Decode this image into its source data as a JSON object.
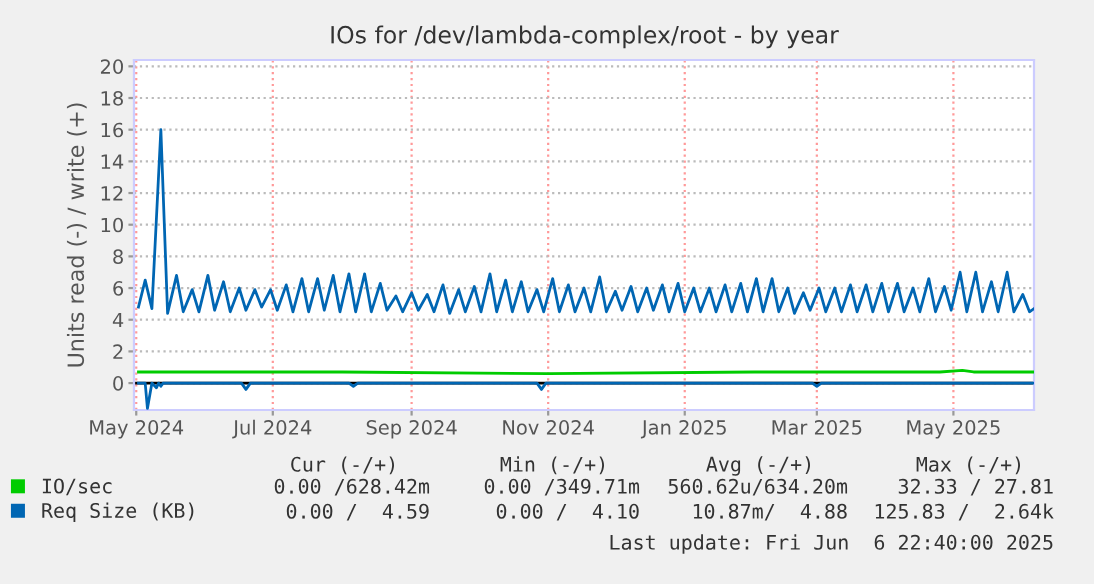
{
  "chart_data": {
    "type": "line",
    "title": "IOs for /dev/lambda-complex/root - by year",
    "ylabel": "Units read (-) / write (+)",
    "xlim": [
      "2024-04-30",
      "2025-06-06"
    ],
    "xticks": [
      {
        "value": "2024-05-01",
        "label": "May 2024"
      },
      {
        "value": "2024-07-01",
        "label": "Jul 2024"
      },
      {
        "value": "2024-09-01",
        "label": "Sep 2024"
      },
      {
        "value": "2024-11-01",
        "label": "Nov 2024"
      },
      {
        "value": "2025-01-01",
        "label": "Jan 2025"
      },
      {
        "value": "2025-03-01",
        "label": "Mar 2025"
      },
      {
        "value": "2025-05-01",
        "label": "May 2025"
      }
    ],
    "ylim": [
      -1.7,
      20.4
    ],
    "yticks": [
      0,
      2,
      4,
      6,
      8,
      10,
      12,
      14,
      16,
      18,
      20
    ],
    "grid": true,
    "legend": "bottom",
    "marker": "none",
    "line_style": "solid",
    "ref_lines": [
      {
        "axis": "y",
        "value": 0,
        "color": "#000000"
      }
    ],
    "series": [
      {
        "name": "IO/sec",
        "color": "#00cc00",
        "x": [
          "2024-05-02",
          "2024-08-01",
          "2024-11-01",
          "2025-02-01",
          "2025-04-25",
          "2025-05-05",
          "2025-05-10",
          "2025-06-06"
        ],
        "values": [
          0.7,
          0.7,
          0.6,
          0.7,
          0.7,
          0.8,
          0.7,
          0.7
        ]
      },
      {
        "name": "Req Size (KB)",
        "color": "#0066b3",
        "x": [
          "2024-05-02",
          "2024-05-05",
          "2024-05-08",
          "2024-05-12",
          "2024-05-15",
          "2024-05-19",
          "2024-05-22",
          "2024-05-26",
          "2024-05-29",
          "2024-06-02",
          "2024-06-05",
          "2024-06-09",
          "2024-06-12",
          "2024-06-16",
          "2024-06-19",
          "2024-06-23",
          "2024-06-26",
          "2024-06-30",
          "2024-07-03",
          "2024-07-07",
          "2024-07-10",
          "2024-07-14",
          "2024-07-17",
          "2024-07-21",
          "2024-07-24",
          "2024-07-28",
          "2024-07-31",
          "2024-08-04",
          "2024-08-07",
          "2024-08-11",
          "2024-08-14",
          "2024-08-18",
          "2024-08-21",
          "2024-08-25",
          "2024-08-28",
          "2024-09-01",
          "2024-09-04",
          "2024-09-08",
          "2024-09-11",
          "2024-09-15",
          "2024-09-18",
          "2024-09-22",
          "2024-09-25",
          "2024-09-29",
          "2024-10-02",
          "2024-10-06",
          "2024-10-09",
          "2024-10-13",
          "2024-10-16",
          "2024-10-20",
          "2024-10-23",
          "2024-10-27",
          "2024-10-30",
          "2024-11-03",
          "2024-11-06",
          "2024-11-10",
          "2024-11-13",
          "2024-11-17",
          "2024-11-20",
          "2024-11-24",
          "2024-11-27",
          "2024-12-01",
          "2024-12-04",
          "2024-12-08",
          "2024-12-11",
          "2024-12-15",
          "2024-12-18",
          "2024-12-22",
          "2024-12-25",
          "2024-12-29",
          "2025-01-01",
          "2025-01-05",
          "2025-01-08",
          "2025-01-12",
          "2025-01-15",
          "2025-01-19",
          "2025-01-22",
          "2025-01-26",
          "2025-01-29",
          "2025-02-02",
          "2025-02-05",
          "2025-02-09",
          "2025-02-12",
          "2025-02-16",
          "2025-02-19",
          "2025-02-23",
          "2025-02-26",
          "2025-03-02",
          "2025-03-05",
          "2025-03-09",
          "2025-03-12",
          "2025-03-16",
          "2025-03-19",
          "2025-03-23",
          "2025-03-26",
          "2025-03-30",
          "2025-04-02",
          "2025-04-06",
          "2025-04-09",
          "2025-04-13",
          "2025-04-16",
          "2025-04-20",
          "2025-04-23",
          "2025-04-27",
          "2025-04-30",
          "2025-05-04",
          "2025-05-07",
          "2025-05-11",
          "2025-05-14",
          "2025-05-18",
          "2025-05-21",
          "2025-05-25",
          "2025-05-28",
          "2025-06-01",
          "2025-06-04",
          "2025-06-06"
        ],
        "values": [
          4.8,
          6.5,
          4.7,
          16,
          4.4,
          6.8,
          4.5,
          5.9,
          4.5,
          6.8,
          4.6,
          6.4,
          4.5,
          6.0,
          4.6,
          5.9,
          4.8,
          5.9,
          4.6,
          6.2,
          4.5,
          6.6,
          4.5,
          6.6,
          4.6,
          6.8,
          4.5,
          6.9,
          4.5,
          6.9,
          4.5,
          6.3,
          4.6,
          5.5,
          4.5,
          5.7,
          4.6,
          5.6,
          4.5,
          6.2,
          4.4,
          5.9,
          4.5,
          6.1,
          4.5,
          6.9,
          4.5,
          6.5,
          4.5,
          6.4,
          4.5,
          5.9,
          4.5,
          6.6,
          4.5,
          6.2,
          4.5,
          6.0,
          4.5,
          6.7,
          4.5,
          5.8,
          4.6,
          6.1,
          4.5,
          6.0,
          4.6,
          6.2,
          4.5,
          6.3,
          4.5,
          6.0,
          4.5,
          6.0,
          4.5,
          6.2,
          4.5,
          6.3,
          4.5,
          6.6,
          4.5,
          6.6,
          4.5,
          6.0,
          4.4,
          5.7,
          4.6,
          6.0,
          4.5,
          6.0,
          4.5,
          6.2,
          4.5,
          6.2,
          4.5,
          6.3,
          4.5,
          6.3,
          4.5,
          6.0,
          4.5,
          6.6,
          4.5,
          6.1,
          4.6,
          7.0,
          4.5,
          7.0,
          4.5,
          6.4,
          4.5,
          7.0,
          4.5,
          5.6,
          4.5,
          4.7
        ]
      },
      {
        "color": "#0066b3",
        "x": [
          "2024-05-02",
          "2024-05-05",
          "2024-05-06",
          "2024-05-08",
          "2024-05-10",
          "2024-05-11",
          "2024-05-12",
          "2024-05-13",
          "2024-06-17",
          "2024-06-19",
          "2024-06-21",
          "2024-08-04",
          "2024-08-06",
          "2024-08-08",
          "2024-10-27",
          "2024-10-29",
          "2024-10-31",
          "2025-02-27",
          "2025-03-01",
          "2025-03-03",
          "2025-06-06"
        ],
        "values": [
          0,
          0,
          -1.6,
          0,
          -0.3,
          0,
          -0.2,
          0,
          0,
          -0.4,
          0,
          0,
          -0.2,
          0,
          0,
          -0.4,
          0,
          0,
          -0.2,
          0,
          0
        ]
      }
    ],
    "annotations": [
      "Cur (-/+)",
      "Min (-/+)",
      "Avg (-/+)",
      "Max (-/+)",
      "0.00 /628.42m",
      "0.00 /349.71m",
      "560.62u/634.20m",
      "32.33 / 27.81",
      "0.00 /  4.59",
      "0.00 /  4.10",
      "10.87m/  4.88",
      "125.83 /  2.64k",
      "Last update: Fri Jun  6 22:40:00 2025"
    ]
  }
}
